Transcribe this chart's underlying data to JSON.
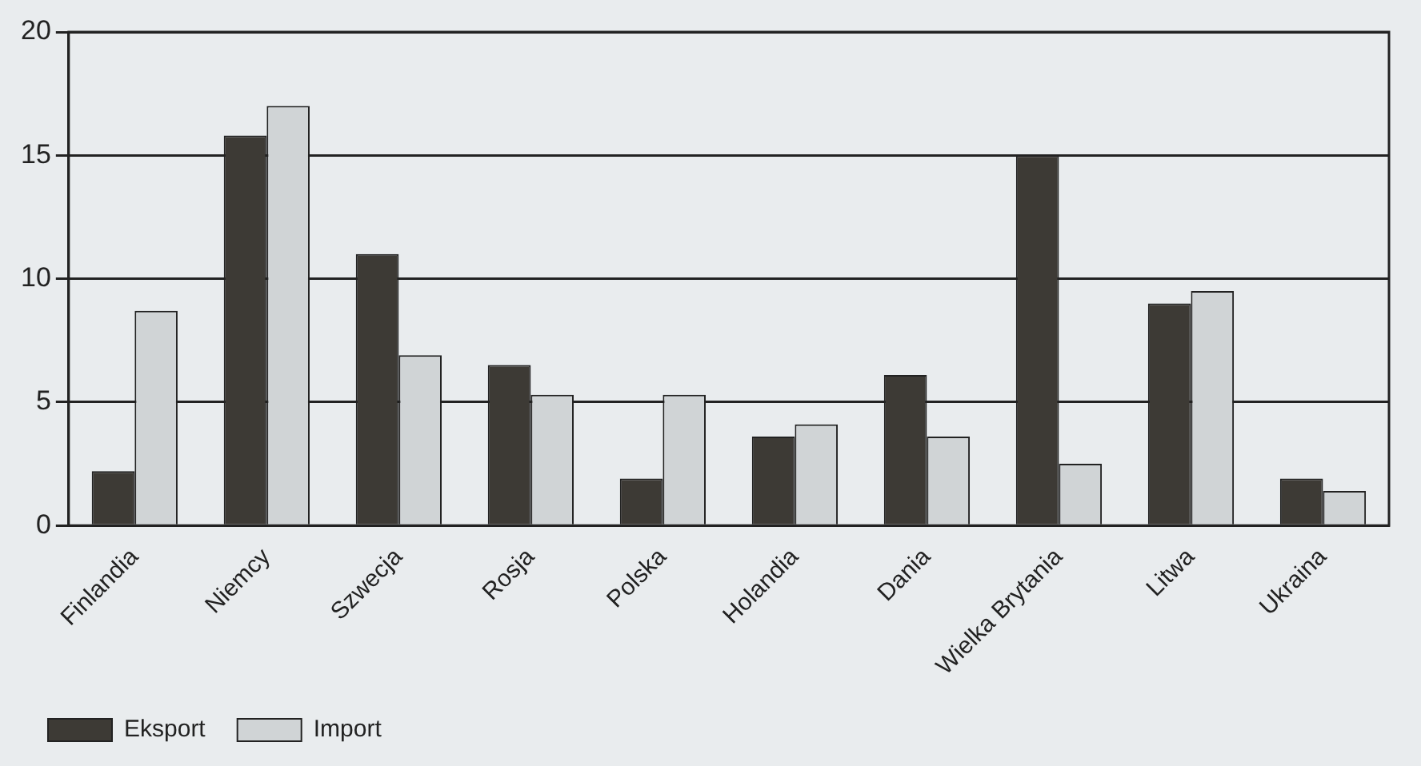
{
  "chart_data": {
    "type": "bar",
    "categories": [
      "Finlandia",
      "Niemcy",
      "Szwecja",
      "Rosja",
      "Polska",
      "Holandia",
      "Dania",
      "Wielka Brytania",
      "Litwa",
      "Ukraina"
    ],
    "series": [
      {
        "name": "Eksport",
        "color": "#3d3a35",
        "values": [
          2.2,
          15.8,
          11.0,
          6.5,
          1.9,
          3.6,
          6.1,
          15.0,
          9.0,
          1.9
        ]
      },
      {
        "name": "Import",
        "color": "#d0d4d6",
        "values": [
          8.7,
          17.0,
          6.9,
          5.3,
          5.3,
          4.1,
          3.6,
          2.5,
          9.5,
          1.4
        ]
      }
    ],
    "ylim": [
      0,
      20
    ],
    "yticks": [
      0,
      5,
      10,
      15,
      20
    ],
    "grid": "y",
    "legend": "bottom left"
  }
}
